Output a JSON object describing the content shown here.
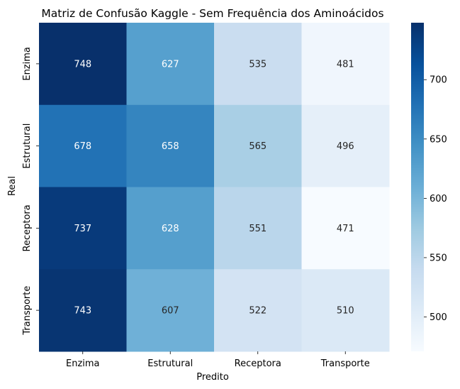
{
  "chart_data": {
    "type": "heatmap",
    "title": "Matriz de Confusão Kaggle - Sem Frequência dos Aminoácidos",
    "xlabel": "Predito",
    "ylabel": "Real",
    "x_categories": [
      "Enzima",
      "Estrutural",
      "Receptora",
      "Transporte"
    ],
    "y_categories": [
      "Enzima",
      "Estrutural",
      "Receptora",
      "Transporte"
    ],
    "values": [
      [
        748,
        627,
        535,
        481
      ],
      [
        678,
        658,
        565,
        496
      ],
      [
        737,
        628,
        551,
        471
      ],
      [
        743,
        607,
        522,
        510
      ]
    ],
    "colormap": "Blues",
    "vmin": 471,
    "vmax": 748,
    "colorbar_ticks": [
      500,
      550,
      600,
      650,
      700
    ]
  }
}
